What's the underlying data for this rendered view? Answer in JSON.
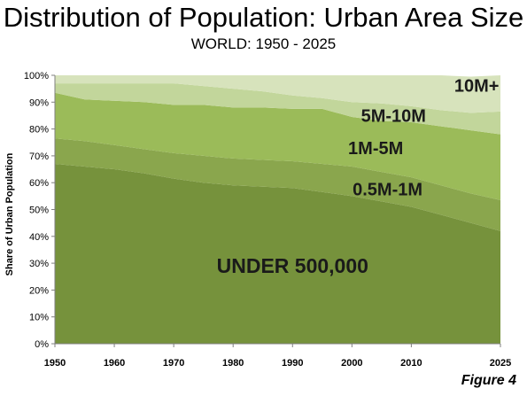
{
  "title": "Distribution of Population: Urban Area Size",
  "subtitle": "WORLD: 1950 - 2025",
  "figure_label": "Figure 4",
  "chart_data": {
    "type": "area",
    "stacked": true,
    "title": "Distribution of Population: Urban Area Size",
    "subtitle": "WORLD: 1950 - 2025",
    "xlabel": "",
    "ylabel": "Share of Urban Population",
    "x": [
      1950,
      1955,
      1960,
      1965,
      1970,
      1975,
      1980,
      1985,
      1990,
      1995,
      2000,
      2005,
      2010,
      2015,
      2020,
      2025
    ],
    "x_ticks": [
      "1950",
      "1960",
      "1970",
      "1980",
      "1990",
      "2000",
      "2010",
      "2025"
    ],
    "y_ticks": [
      "0%",
      "10%",
      "20%",
      "30%",
      "40%",
      "50%",
      "60%",
      "70%",
      "80%",
      "90%",
      "100%"
    ],
    "ylim": [
      0,
      100
    ],
    "grid": false,
    "series": [
      {
        "name": "UNDER 500,000",
        "color": "#76923c",
        "values": [
          67,
          66,
          65,
          63.5,
          61.5,
          60,
          59,
          58.5,
          58,
          56.5,
          55,
          53,
          51,
          48,
          45,
          42
        ]
      },
      {
        "name": "0.5M-1M",
        "color": "#8aa64d",
        "values": [
          9.5,
          9.5,
          9,
          9,
          9.5,
          10,
          10,
          10,
          10,
          10.5,
          11,
          11,
          11,
          11,
          11,
          11.5
        ]
      },
      {
        "name": "1M-5M",
        "color": "#9bbb59",
        "values": [
          17,
          15.5,
          16.5,
          17.5,
          18,
          19,
          19,
          19.5,
          19.5,
          20.5,
          18.5,
          19,
          20.5,
          22,
          23.5,
          24.5
        ]
      },
      {
        "name": "5M-10M",
        "color": "#c2d69b",
        "values": [
          3.5,
          6,
          6.5,
          7,
          8,
          7,
          7,
          6,
          5,
          4,
          5.5,
          6.5,
          6,
          6,
          6.5,
          8.5
        ]
      },
      {
        "name": "10M+",
        "color": "#d7e3bc",
        "values": [
          3,
          3,
          3,
          3,
          3,
          4,
          5,
          6,
          7.5,
          8.5,
          10,
          10.5,
          11.5,
          13,
          13.5,
          13.5
        ]
      }
    ]
  }
}
